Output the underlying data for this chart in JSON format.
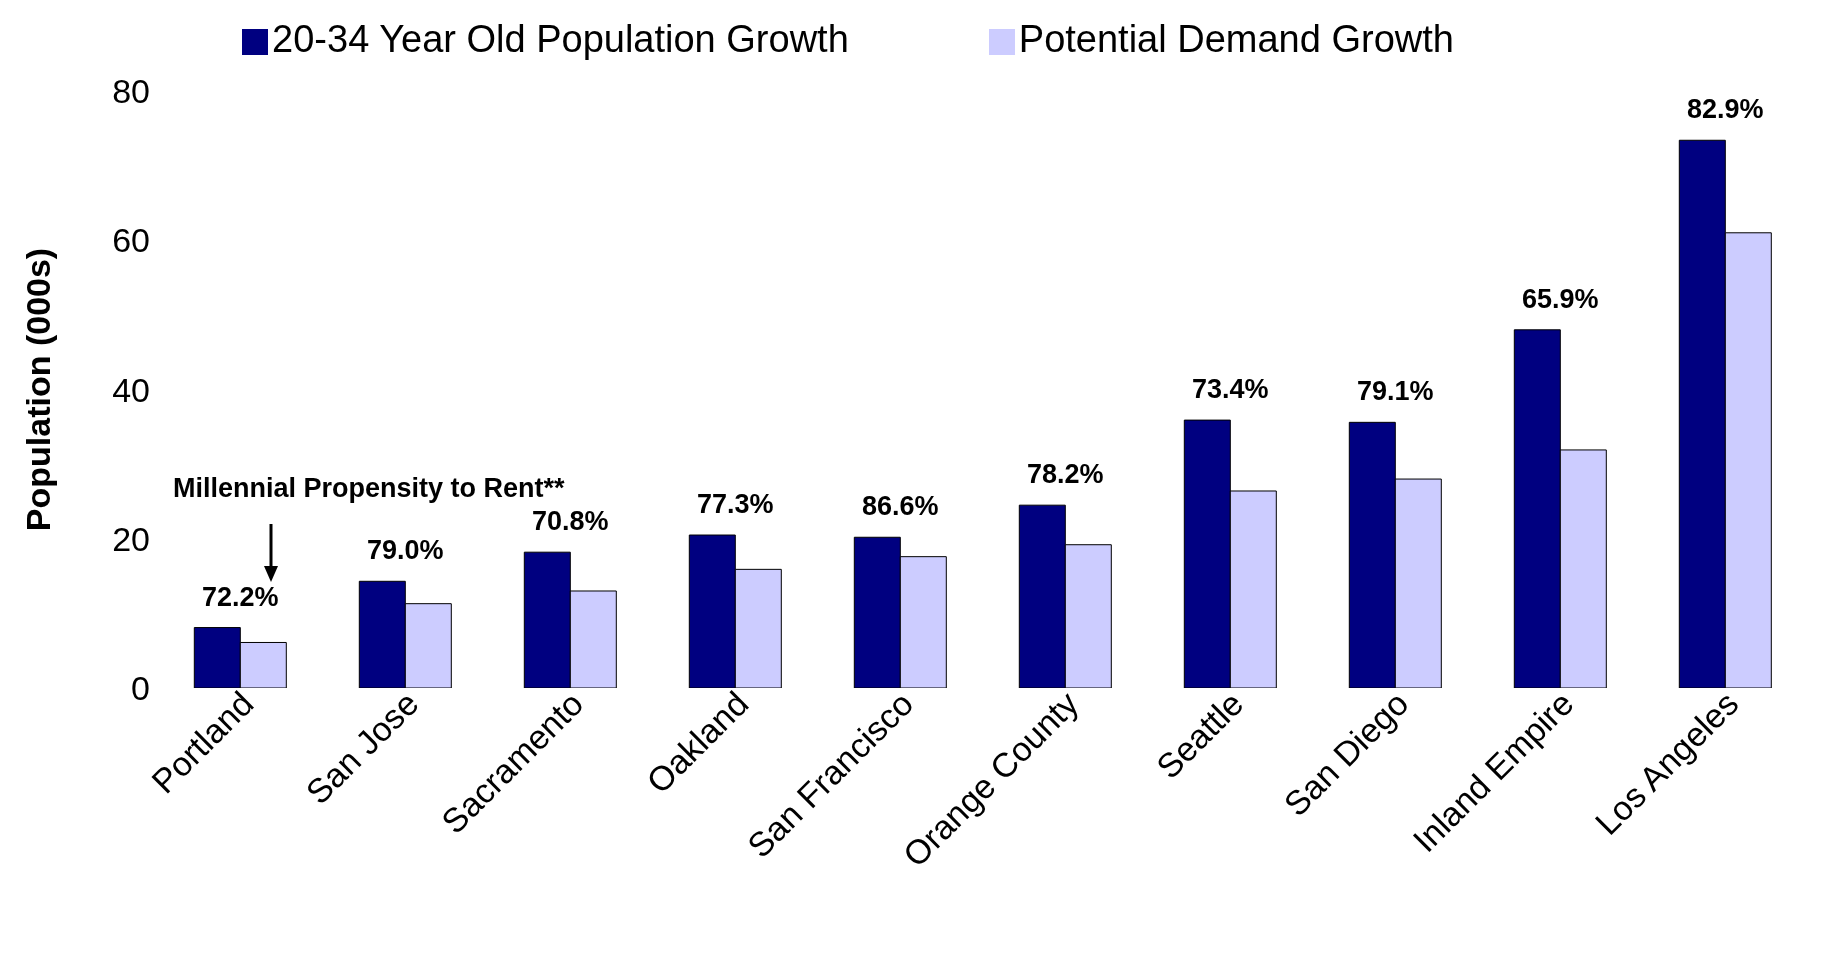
{
  "chart_data": {
    "type": "bar",
    "ylabel": "Population (000s)",
    "categories": [
      "Portland",
      "San Jose",
      "Sacramento",
      "Oakland",
      "San Francisco",
      "Orange County",
      "Seattle",
      "San Diego",
      "Inland Empire",
      "Los Angeles"
    ],
    "series": [
      {
        "name": "20-34 Year Old Population Growth",
        "color": "#000080",
        "values": [
          8.1,
          14.3,
          18.2,
          20.5,
          20.2,
          24.5,
          35.9,
          35.6,
          48.0,
          73.4
        ]
      },
      {
        "name": "Potential Demand Growth",
        "color": "#ccccff",
        "values": [
          6.1,
          11.3,
          13.0,
          15.9,
          17.6,
          19.2,
          26.4,
          28.0,
          31.9,
          61.0
        ]
      }
    ],
    "ylim": [
      0,
      80
    ],
    "yticks": [
      0,
      20,
      40,
      60,
      80
    ],
    "grid": false,
    "legend": "top",
    "annotations": [
      "Millennial Propensity to Rent**",
      "72.2%",
      "79.0%",
      "70.8%",
      "77.3%",
      "86.6%",
      "78.2%",
      "73.4%",
      "79.1%",
      "65.9%",
      "82.9%"
    ]
  }
}
